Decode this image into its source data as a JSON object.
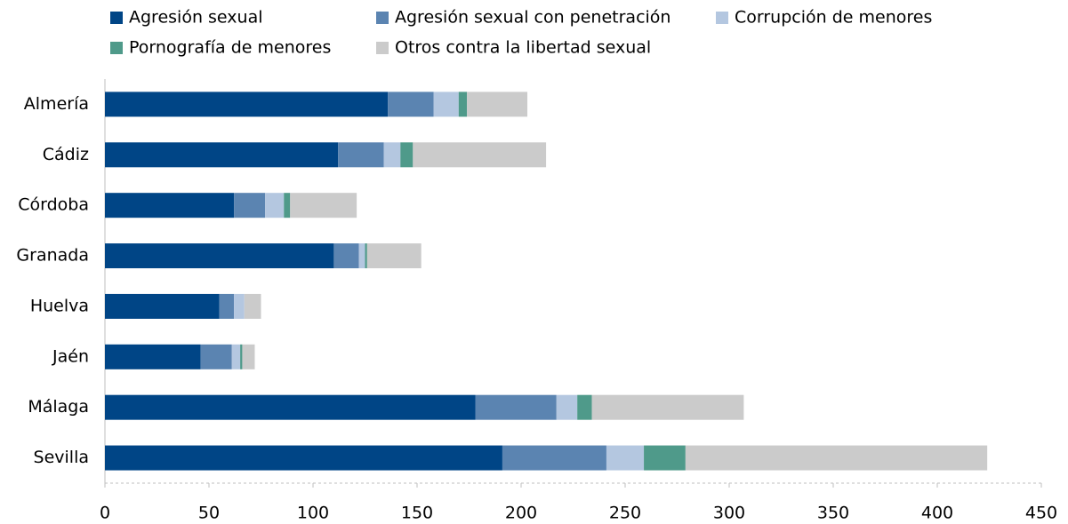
{
  "chart_data": {
    "type": "stacked_bar_horizontal",
    "categories": [
      "Almería",
      "Cádiz",
      "Córdoba",
      "Granada",
      "Huelva",
      "Jaén",
      "Málaga",
      "Sevilla"
    ],
    "series": [
      {
        "name": "Agresión sexual",
        "color": "#004586",
        "values": [
          136,
          112,
          62,
          110,
          55,
          46,
          178,
          191
        ]
      },
      {
        "name": "Agresión sexual con penetración",
        "color": "#5b84b1",
        "values": [
          22,
          22,
          15,
          12,
          7,
          15,
          39,
          50
        ]
      },
      {
        "name": "Corrupción de menores",
        "color": "#b4c7e0",
        "values": [
          12,
          8,
          9,
          3,
          5,
          4,
          10,
          18
        ]
      },
      {
        "name": "Pornografía de menores",
        "color": "#4f9a8a",
        "values": [
          4,
          6,
          3,
          1,
          0,
          1,
          7,
          20
        ]
      },
      {
        "name": "Otros contra la libertad sexual",
        "color": "#cbcbcb",
        "values": [
          29,
          64,
          32,
          26,
          8,
          6,
          73,
          145
        ]
      }
    ],
    "xlim": [
      0,
      450
    ],
    "xticks": [
      0,
      50,
      100,
      150,
      200,
      250,
      300,
      350,
      400,
      450
    ],
    "legend": "top"
  }
}
